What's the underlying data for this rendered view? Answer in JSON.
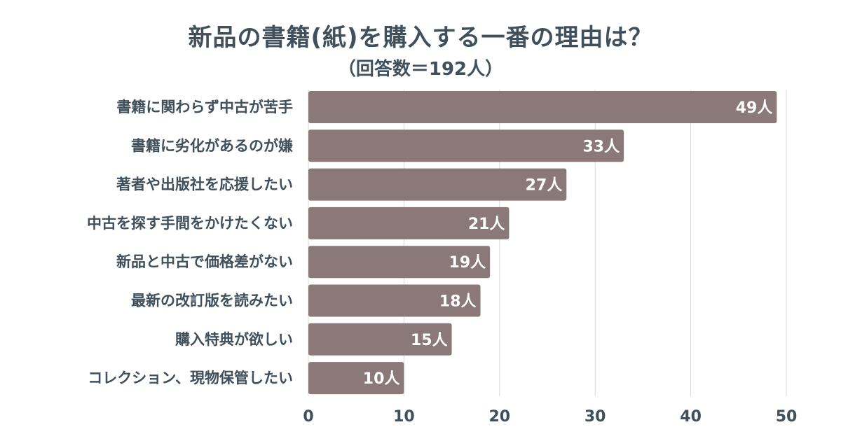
{
  "chart_data": {
    "type": "bar",
    "orientation": "horizontal",
    "title": "新品の書籍(紙)を購入する一番の理由は？",
    "subtitle": "（回答数＝192人）",
    "categories": [
      "書籍に関わらず中古が苦手",
      "書籍に劣化があるのが嫌",
      "著者や出版社を応援したい",
      "中古を探す手間をかけたくない",
      "新品と中古で価格差がない",
      "最新の改訂版を読みたい",
      "購入特典が欲しい",
      "コレクション、現物保管したい"
    ],
    "values": [
      49,
      33,
      27,
      21,
      19,
      18,
      15,
      10
    ],
    "data_labels": [
      "49人",
      "33人",
      "27人",
      "21人",
      "19人",
      "18人",
      "15人",
      "10人"
    ],
    "xlim": [
      0,
      50
    ],
    "x_ticks": [
      "0",
      "10",
      "20",
      "30",
      "40",
      "50"
    ],
    "grid": true,
    "bar_color": "#8b7878",
    "grid_color": "#d9d9d9",
    "text_color": "#3f4f5b"
  }
}
